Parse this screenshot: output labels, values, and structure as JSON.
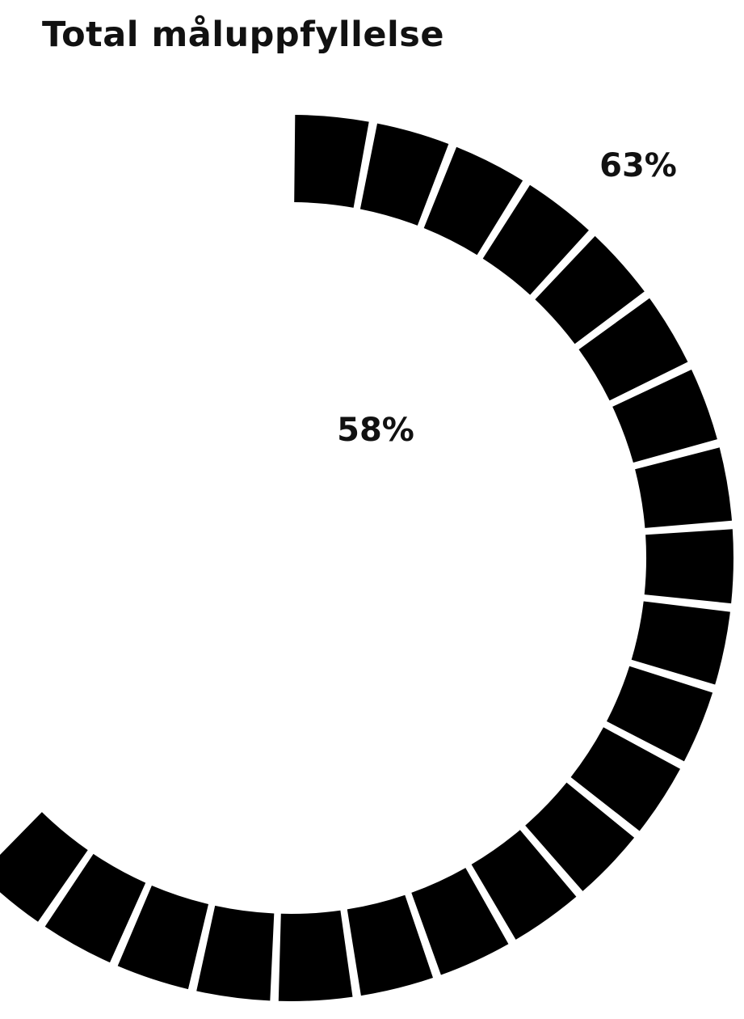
{
  "chart_data": {
    "type": "gauge",
    "title": "Total måluppfyllelse",
    "value_percent": 58,
    "target_percent": 63,
    "value_label": "58%",
    "target_label": "63%",
    "segments": 21,
    "segment_color": "#000000",
    "background_color": "#ffffff"
  }
}
